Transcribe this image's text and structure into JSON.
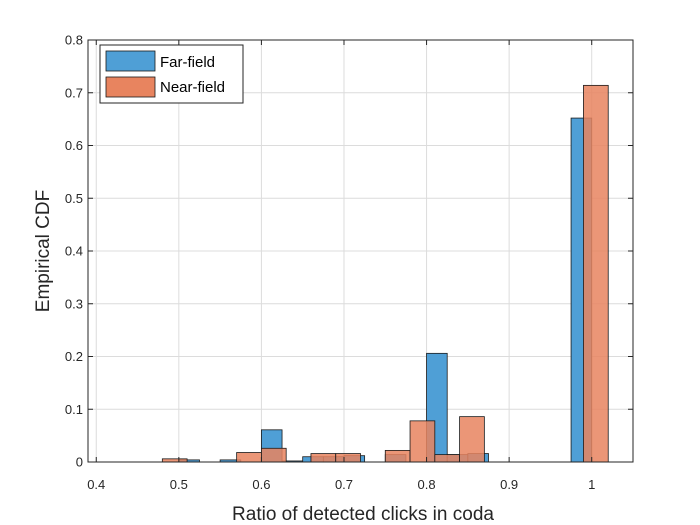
{
  "chart_data": {
    "type": "bar",
    "title": "",
    "xlabel": "Ratio of detected clicks in coda",
    "ylabel": "Empirical CDF",
    "xlim": [
      0.39,
      1.05
    ],
    "ylim": [
      0,
      0.8
    ],
    "xticks": [
      0.4,
      0.5,
      0.6,
      0.7,
      0.8,
      0.9,
      1
    ],
    "xtick_labels": [
      "0.4",
      "0.5",
      "0.6",
      "0.7",
      "0.8",
      "0.9",
      "1"
    ],
    "yticks": [
      0,
      0.1,
      0.2,
      0.3,
      0.4,
      0.5,
      0.6,
      0.7,
      0.8
    ],
    "ytick_labels": [
      "0",
      "0.1",
      "0.2",
      "0.3",
      "0.4",
      "0.5",
      "0.6",
      "0.7",
      "0.8"
    ],
    "grid": true,
    "legend_position": "top-left",
    "series": [
      {
        "name": "Far-field",
        "color": "#4f9fd6",
        "bars": [
          {
            "x0": 0.5,
            "x1": 0.525,
            "y": 0.004
          },
          {
            "x0": 0.55,
            "x1": 0.575,
            "y": 0.004
          },
          {
            "x0": 0.6,
            "x1": 0.625,
            "y": 0.061
          },
          {
            "x0": 0.625,
            "x1": 0.65,
            "y": 0.002
          },
          {
            "x0": 0.65,
            "x1": 0.675,
            "y": 0.01
          },
          {
            "x0": 0.675,
            "x1": 0.7,
            "y": 0.01
          },
          {
            "x0": 0.7,
            "x1": 0.725,
            "y": 0.012
          },
          {
            "x0": 0.75,
            "x1": 0.775,
            "y": 0.014
          },
          {
            "x0": 0.8,
            "x1": 0.825,
            "y": 0.206
          },
          {
            "x0": 0.825,
            "x1": 0.85,
            "y": 0.014
          },
          {
            "x0": 0.85,
            "x1": 0.875,
            "y": 0.016
          },
          {
            "x0": 0.975,
            "x1": 1.0,
            "y": 0.652
          }
        ]
      },
      {
        "name": "Near-field",
        "color": "#e8845f",
        "bars": [
          {
            "x0": 0.48,
            "x1": 0.51,
            "y": 0.006
          },
          {
            "x0": 0.57,
            "x1": 0.6,
            "y": 0.018
          },
          {
            "x0": 0.6,
            "x1": 0.63,
            "y": 0.026
          },
          {
            "x0": 0.66,
            "x1": 0.69,
            "y": 0.016
          },
          {
            "x0": 0.69,
            "x1": 0.72,
            "y": 0.016
          },
          {
            "x0": 0.75,
            "x1": 0.78,
            "y": 0.022
          },
          {
            "x0": 0.78,
            "x1": 0.81,
            "y": 0.078
          },
          {
            "x0": 0.81,
            "x1": 0.84,
            "y": 0.014
          },
          {
            "x0": 0.84,
            "x1": 0.87,
            "y": 0.086
          },
          {
            "x0": 0.99,
            "x1": 1.02,
            "y": 0.714
          }
        ]
      }
    ]
  }
}
